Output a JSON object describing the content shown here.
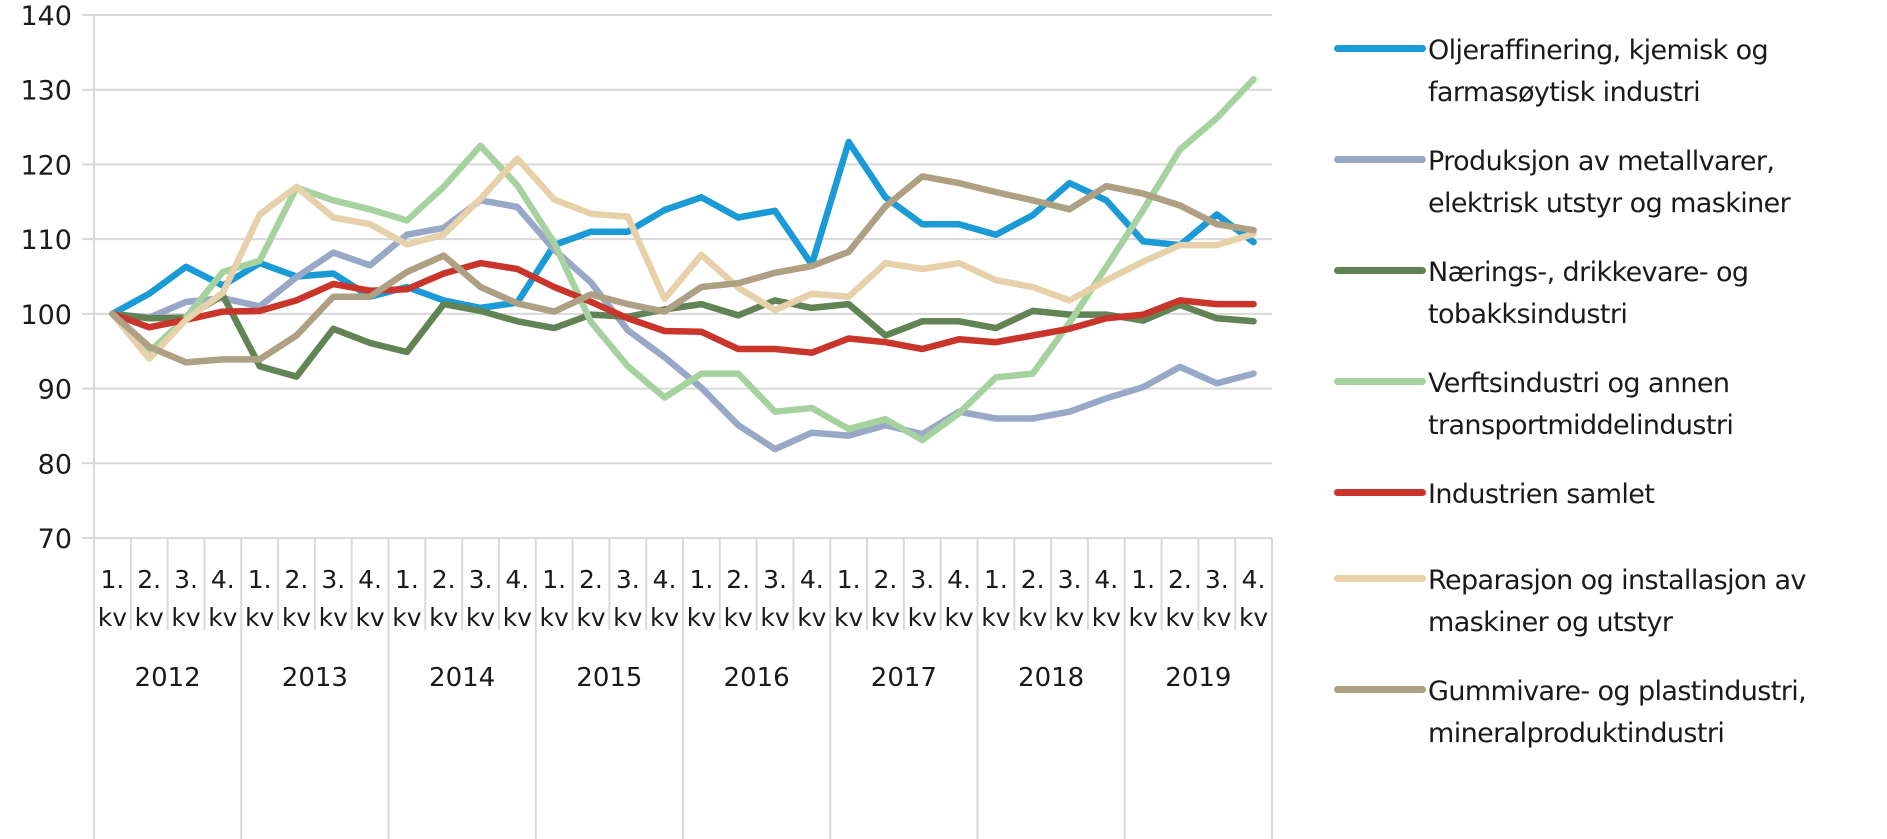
{
  "chart_data": {
    "type": "line",
    "title": "",
    "xlabel": "",
    "ylabel": "",
    "ylim": [
      70,
      140
    ],
    "yticks": [
      70,
      80,
      90,
      100,
      110,
      120,
      130,
      140
    ],
    "ytick_labels": [
      "70",
      "80",
      "90",
      "100",
      "110",
      "120",
      "130",
      "140"
    ],
    "grid": "horizontal",
    "legend_position": "right",
    "quarter_labels": [
      "1.",
      "2.",
      "3.",
      "4."
    ],
    "quarter_suffix": "kv",
    "years": [
      "2012",
      "2013",
      "2014",
      "2015",
      "2016",
      "2017",
      "2018",
      "2019"
    ],
    "categories": [
      "2012 1. kv",
      "2012 2. kv",
      "2012 3. kv",
      "2012 4. kv",
      "2013 1. kv",
      "2013 2. kv",
      "2013 3. kv",
      "2013 4. kv",
      "2014 1. kv",
      "2014 2. kv",
      "2014 3. kv",
      "2014 4. kv",
      "2015 1. kv",
      "2015 2. kv",
      "2015 3. kv",
      "2015 4. kv",
      "2016 1. kv",
      "2016 2. kv",
      "2016 3. kv",
      "2016 4. kv",
      "2017 1. kv",
      "2017 2. kv",
      "2017 3. kv",
      "2017 4. kv",
      "2018 1. kv",
      "2018 2. kv",
      "2018 3. kv",
      "2018 4. kv",
      "2019 1. kv",
      "2019 2. kv",
      "2019 3. kv",
      "2019 4. kv"
    ],
    "series": [
      {
        "name": "Oljeraffinering, kjemisk og farmasøytisk industri",
        "legend_lines": [
          "Oljeraffinering, kjemisk og",
          "farmasøytisk industri"
        ],
        "color": "#1a9ad6",
        "values": [
          100,
          102.7,
          106.3,
          103.8,
          106.8,
          105,
          105.4,
          102.3,
          103.6,
          101.8,
          100.8,
          101.5,
          109.2,
          111,
          111,
          113.9,
          115.6,
          112.9,
          113.8,
          106.6,
          123,
          115.6,
          112,
          112,
          110.6,
          113.2,
          117.5,
          115.2,
          109.7,
          109.2,
          113.3,
          109.6
        ]
      },
      {
        "name": "Produksjon av metallvarer, elektrisk utstyr og maskiner",
        "legend_lines": [
          "Produksjon av metallvarer,",
          "elektrisk utstyr og maskiner"
        ],
        "color": "#9aa8c8",
        "values": [
          100,
          99.5,
          101.6,
          102.1,
          101,
          104.9,
          108.2,
          106.5,
          110.6,
          111.5,
          115.2,
          114.3,
          108.6,
          104.2,
          97.8,
          94.2,
          90.1,
          85.1,
          81.9,
          84.1,
          83.7,
          85.1,
          83.9,
          86.9,
          86,
          86,
          86.9,
          88.7,
          90.2,
          92.9,
          90.7,
          92
        ]
      },
      {
        "name": "Nærings-, drikkevare- og tobakksindustri",
        "legend_lines": [
          "Nærings-, drikkevare- og",
          "tobakksindustri"
        ],
        "color": "#628455",
        "values": [
          100,
          99.4,
          99.5,
          102.5,
          93,
          91.6,
          98,
          96.1,
          94.9,
          101.3,
          100.4,
          99,
          98.1,
          99.9,
          99.6,
          100.6,
          101.3,
          99.8,
          101.8,
          100.8,
          101.3,
          97.1,
          99,
          99,
          98.1,
          100.4,
          99.9,
          99.9,
          99.1,
          101.2,
          99.4,
          99
        ]
      },
      {
        "name": "Verftsindustri og annen transportmiddelindustri",
        "legend_lines": [
          "Verftsindustri og annen",
          "transportmiddelindustri"
        ],
        "color": "#a6d2a0",
        "values": [
          100,
          94.9,
          99.5,
          105.6,
          107.1,
          116.9,
          115.2,
          114,
          112.5,
          117,
          122.5,
          117.2,
          109.5,
          98.9,
          93,
          88.8,
          92,
          92,
          86.9,
          87.4,
          84.6,
          85.9,
          83.1,
          86.7,
          91.5,
          92,
          98.8,
          106.3,
          113.9,
          122,
          126.2,
          131.4
        ]
      },
      {
        "name": "Industrien samlet",
        "legend_lines": [
          "Industrien samlet"
        ],
        "color": "#c9352a",
        "values": [
          100,
          98.2,
          99.2,
          100.3,
          100.4,
          101.8,
          104,
          103.1,
          103.3,
          105.4,
          106.8,
          106,
          103.6,
          101.6,
          99.4,
          97.7,
          97.6,
          95.3,
          95.3,
          94.8,
          96.7,
          96.2,
          95.3,
          96.6,
          96.2,
          97.1,
          98,
          99.4,
          99.9,
          101.8,
          101.3,
          101.3
        ]
      },
      {
        "name": "Reparasjon og installasjon av maskiner og utstyr",
        "legend_lines": [
          "Reparasjon og installasjon av",
          "maskiner og utstyr"
        ],
        "color": "#e6d1aa",
        "values": [
          100,
          94,
          99.2,
          102.8,
          113.3,
          117,
          112.9,
          112,
          109.3,
          110.6,
          115.4,
          120.8,
          115.3,
          113.4,
          113,
          102,
          107.9,
          103.5,
          100.5,
          102.7,
          102.3,
          106.8,
          106,
          106.8,
          104.5,
          103.6,
          101.8,
          104.5,
          107,
          109.2,
          109.2,
          110.7
        ]
      },
      {
        "name": "Gummivare- og plastindustri, mineralproduktindustri",
        "legend_lines": [
          "Gummivare- og plastindustri,",
          "mineralproduktindustri"
        ],
        "color": "#ada083",
        "values": [
          100,
          95.6,
          93.5,
          93.9,
          93.9,
          97.1,
          102.3,
          102.3,
          105.6,
          107.8,
          103.6,
          101.4,
          100.3,
          102.6,
          101.3,
          100.3,
          103.6,
          104.1,
          105.5,
          106.4,
          108.3,
          114.4,
          118.4,
          117.5,
          116.3,
          115.2,
          114,
          117.1,
          116.1,
          114.5,
          112,
          111.2
        ]
      }
    ]
  }
}
